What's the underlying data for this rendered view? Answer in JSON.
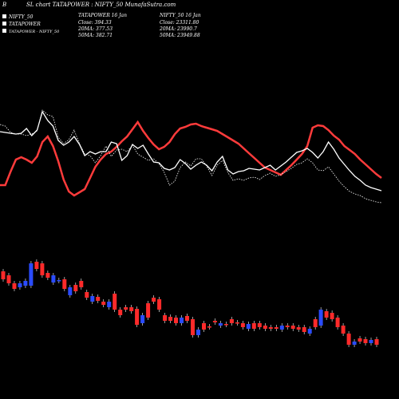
{
  "header": {
    "letter": "B",
    "title": "SL chart TATAPOWER : NIFTY_50  MunafaSutra.com"
  },
  "legend": [
    {
      "label": "NIFTY_50",
      "color": "#ffffff"
    },
    {
      "label": "TATAPOWER",
      "color": "#ffffff"
    },
    {
      "label": "TATAPOWER - NIFTY_50",
      "color": "#ffffff"
    }
  ],
  "info_tatapower": {
    "date": "TATAPOWER 16 Jan",
    "close": "Close: 394.33",
    "ma20": "20MA: 377.53",
    "ma50": "50MA: 382.71"
  },
  "info_nifty": {
    "date": "NIFTY_50 16 Jan",
    "close": "Close: 23311.80",
    "ma20": "20MA: 23990.7",
    "ma50": "50MA: 23949.88"
  },
  "chart_data": {
    "type": "line",
    "series": [
      {
        "name": "TATAPOWER",
        "color": "#ff3b3b",
        "values": [
          232,
          232,
          215,
          200,
          197,
          200,
          204,
          196,
          178,
          171,
          183,
          202,
          225,
          240,
          245,
          241,
          237,
          223,
          209,
          200,
          193,
          190,
          184,
          177,
          171,
          162,
          153,
          164,
          173,
          181,
          187,
          184,
          178,
          168,
          161,
          159,
          156,
          155,
          158,
          160,
          162,
          164,
          168,
          172,
          176,
          180,
          186,
          192,
          198,
          204,
          210,
          213,
          216,
          219,
          213,
          207,
          200,
          193,
          183,
          160,
          157,
          158,
          163,
          170,
          175,
          183,
          188,
          193,
          200,
          206,
          212,
          218,
          223
        ]
      },
      {
        "name": "NIFTY_50",
        "color": "#ffffff",
        "values": [
          165,
          166,
          167,
          168,
          167,
          161,
          170,
          163,
          140,
          151,
          158,
          176,
          182,
          178,
          171,
          181,
          195,
          190,
          193,
          190,
          190,
          178,
          180,
          201,
          195,
          181,
          186,
          182,
          193,
          203,
          204,
          211,
          213,
          210,
          200,
          205,
          212,
          207,
          203,
          207,
          214,
          203,
          196,
          213,
          218,
          215,
          214,
          211,
          212,
          213,
          210,
          207,
          213,
          208,
          203,
          197,
          191,
          189,
          186,
          191,
          198,
          190,
          178,
          187,
          198,
          206,
          214,
          221,
          226,
          232,
          235,
          237,
          239
        ]
      },
      {
        "name": "TATAPOWER - NIFTY_50",
        "color": "#ffffff",
        "values": [
          156,
          158,
          166,
          168,
          168,
          170,
          168,
          164,
          138,
          144,
          146,
          172,
          180,
          175,
          163,
          180,
          193,
          195,
          204,
          195,
          183,
          196,
          188,
          187,
          190,
          182,
          193,
          197,
          201,
          199,
          205,
          216,
          232,
          227,
          210,
          203,
          208,
          199,
          199,
          208,
          220,
          207,
          201,
          216,
          226,
          224,
          226,
          223,
          222,
          225,
          220,
          217,
          221,
          219,
          215,
          211,
          206,
          204,
          199,
          204,
          213,
          214,
          209,
          218,
          227,
          234,
          240,
          243,
          245,
          249,
          251,
          253,
          254
        ]
      }
    ],
    "candles": [
      {
        "o": 340,
        "c": 350,
        "d": "down"
      },
      {
        "o": 345,
        "c": 355,
        "d": "down"
      },
      {
        "o": 355,
        "c": 362,
        "d": "down"
      },
      {
        "o": 360,
        "c": 355,
        "d": "up"
      },
      {
        "o": 358,
        "c": 352,
        "d": "up"
      },
      {
        "o": 330,
        "c": 358,
        "d": "up"
      },
      {
        "o": 328,
        "c": 337,
        "d": "down"
      },
      {
        "o": 330,
        "c": 345,
        "d": "down"
      },
      {
        "o": 342,
        "c": 348,
        "d": "down"
      },
      {
        "o": 354,
        "c": 345,
        "d": "up"
      },
      {
        "o": 351,
        "c": 352,
        "d": "up"
      },
      {
        "o": 350,
        "c": 362,
        "d": "down"
      },
      {
        "o": 370,
        "c": 360,
        "d": "up"
      },
      {
        "o": 357,
        "c": 365,
        "d": "down"
      },
      {
        "o": 352,
        "c": 360,
        "d": "down"
      },
      {
        "o": 366,
        "c": 373,
        "d": "down"
      },
      {
        "o": 378,
        "c": 371,
        "d": "up"
      },
      {
        "o": 372,
        "c": 377,
        "d": "down"
      },
      {
        "o": 378,
        "c": 382,
        "d": "down"
      },
      {
        "o": 385,
        "c": 378,
        "d": "up"
      },
      {
        "o": 368,
        "c": 388,
        "d": "down"
      },
      {
        "o": 388,
        "c": 395,
        "d": "down"
      },
      {
        "o": 385,
        "c": 388,
        "d": "down"
      },
      {
        "o": 385,
        "c": 390,
        "d": "down"
      },
      {
        "o": 387,
        "c": 407,
        "d": "down"
      },
      {
        "o": 405,
        "c": 395,
        "d": "up"
      },
      {
        "o": 380,
        "c": 398,
        "d": "down"
      },
      {
        "o": 373,
        "c": 378,
        "d": "down"
      },
      {
        "o": 375,
        "c": 388,
        "d": "down"
      },
      {
        "o": 395,
        "c": 402,
        "d": "down"
      },
      {
        "o": 397,
        "c": 402,
        "d": "down"
      },
      {
        "o": 398,
        "c": 405,
        "d": "down"
      },
      {
        "o": 405,
        "c": 398,
        "d": "up"
      },
      {
        "o": 396,
        "c": 402,
        "d": "down"
      },
      {
        "o": 400,
        "c": 420,
        "d": "down"
      },
      {
        "o": 420,
        "c": 413,
        "d": "up"
      },
      {
        "o": 405,
        "c": 413,
        "d": "down"
      },
      {
        "o": 409,
        "c": 410,
        "d": "down"
      },
      {
        "o": 402,
        "c": 404,
        "d": "down"
      },
      {
        "o": 408,
        "c": 405,
        "d": "up"
      },
      {
        "o": 406,
        "c": 407,
        "d": "down"
      },
      {
        "o": 400,
        "c": 405,
        "d": "down"
      },
      {
        "o": 404,
        "c": 405,
        "d": "down"
      },
      {
        "o": 405,
        "c": 410,
        "d": "down"
      },
      {
        "o": 412,
        "c": 406,
        "d": "up"
      },
      {
        "o": 405,
        "c": 412,
        "d": "down"
      },
      {
        "o": 405,
        "c": 410,
        "d": "down"
      },
      {
        "o": 408,
        "c": 412,
        "d": "down"
      },
      {
        "o": 410,
        "c": 412,
        "d": "down"
      },
      {
        "o": 412,
        "c": 410,
        "d": "down"
      },
      {
        "o": 413,
        "c": 408,
        "d": "up"
      },
      {
        "o": 408,
        "c": 410,
        "d": "down"
      },
      {
        "o": 408,
        "c": 412,
        "d": "down"
      },
      {
        "o": 410,
        "c": 413,
        "d": "down"
      },
      {
        "o": 410,
        "c": 416,
        "d": "down"
      },
      {
        "o": 418,
        "c": 412,
        "d": "up"
      },
      {
        "o": 400,
        "c": 410,
        "d": "down"
      },
      {
        "o": 388,
        "c": 408,
        "d": "up"
      },
      {
        "o": 390,
        "c": 398,
        "d": "down"
      },
      {
        "o": 392,
        "c": 400,
        "d": "down"
      },
      {
        "o": 398,
        "c": 410,
        "d": "down"
      },
      {
        "o": 408,
        "c": 418,
        "d": "down"
      },
      {
        "o": 418,
        "c": 432,
        "d": "down"
      },
      {
        "o": 428,
        "c": 432,
        "d": "up"
      },
      {
        "o": 424,
        "c": 428,
        "d": "down"
      },
      {
        "o": 425,
        "c": 430,
        "d": "down"
      },
      {
        "o": 430,
        "c": 426,
        "d": "up"
      },
      {
        "o": 425,
        "c": 432,
        "d": "down"
      }
    ]
  }
}
